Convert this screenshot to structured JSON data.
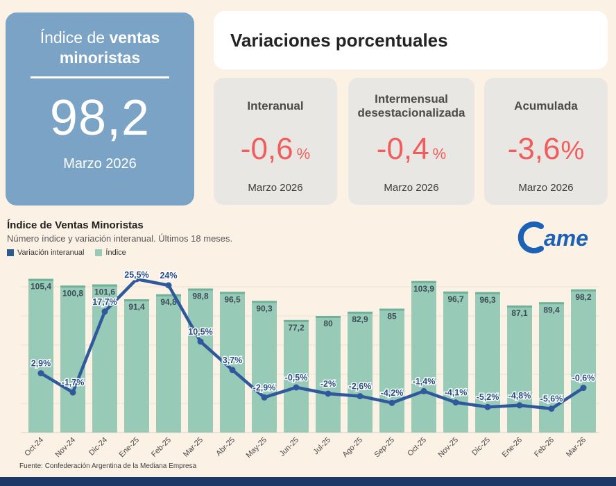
{
  "summary_card": {
    "title_line1_regular": "Índice de ",
    "title_line1_bold": "ventas",
    "title_line2_bold": "minoristas",
    "value": "98,2",
    "period": "Marzo 2026",
    "bg_color": "#7aa3c6"
  },
  "variations": {
    "heading": "Variaciones porcentuales",
    "cards": [
      {
        "label": "Interanual",
        "value": "-0,6",
        "unit": "%",
        "period": "Marzo 2026"
      },
      {
        "label": "Intermensual desestacionalizada",
        "value": "-0,4",
        "unit": "%",
        "period": "Marzo 2026"
      },
      {
        "label": "Acumulada",
        "value": "-3,6",
        "unit": "%",
        "period": "Marzo 2026"
      }
    ],
    "value_color": "#f15d5d"
  },
  "chart_section": {
    "title": "Índice de Ventas Minoristas",
    "subtitle": "Número índice y variación interanual. Últimos 18 meses.",
    "legend": [
      {
        "label": "Variación interanual",
        "color": "#2e5a94"
      },
      {
        "label": "Índice",
        "color": "#97cbb8"
      }
    ],
    "logo_text": "Came",
    "source": "Fuente: Confederación Argentina de la Mediana Empresa"
  },
  "chart_data": {
    "type": "bar",
    "subtype": "bar+line combo",
    "categories": [
      "Oct-24",
      "Nov-24",
      "Dic-24",
      "Ene-25",
      "Feb-25",
      "Mar-25",
      "Abr-25",
      "May-25",
      "Jun-25",
      "Jul-25",
      "Ago-25",
      "Sep-25",
      "Oct-25",
      "Nov-25",
      "Dic-25",
      "Ene-26",
      "Feb-26",
      "Mar-26"
    ],
    "series": [
      {
        "name": "Índice",
        "type": "bar",
        "values": [
          105.4,
          100.8,
          101.6,
          91.4,
          94.8,
          98.8,
          96.5,
          90.3,
          77.2,
          80,
          82.9,
          85,
          103.9,
          96.7,
          96.3,
          87.1,
          89.4,
          98.2
        ],
        "labels": [
          "105,4",
          "100,8",
          "101,6",
          "91,4",
          "94,8",
          "98,8",
          "96,5",
          "90,3",
          "77,2",
          "80",
          "82,9",
          "85",
          "103,9",
          "96,7",
          "96,3",
          "87,1",
          "89,4",
          "98,2"
        ],
        "color": "#97cbb8",
        "cap_color": "#6fb29a"
      },
      {
        "name": "Variación interanual",
        "type": "line",
        "values": [
          2.9,
          -1.7,
          17.7,
          25.5,
          24,
          10.5,
          3.7,
          -2.9,
          -0.5,
          -2,
          -2.6,
          -4.2,
          -1.4,
          -4.1,
          -5.2,
          -4.8,
          -5.6,
          -0.6
        ],
        "labels": [
          "2,9%",
          "-1,7%",
          "17,7%",
          "25,5%",
          "24%",
          "10,5%",
          "3,7%",
          "-2,9%",
          "-0,5%",
          "-2%",
          "-2,6%",
          "-4,2%",
          "-1,4%",
          "-4,1%",
          "-5,2%",
          "-4,8%",
          "-5,6%",
          "-0,6%"
        ],
        "color": "#30599b"
      }
    ],
    "ylim_bars": [
      0,
      110
    ],
    "grid": true,
    "grid_values": [
      0,
      20,
      40,
      60,
      80,
      100
    ],
    "legend_position": "top-left",
    "xlabel": "",
    "ylabel": ""
  }
}
